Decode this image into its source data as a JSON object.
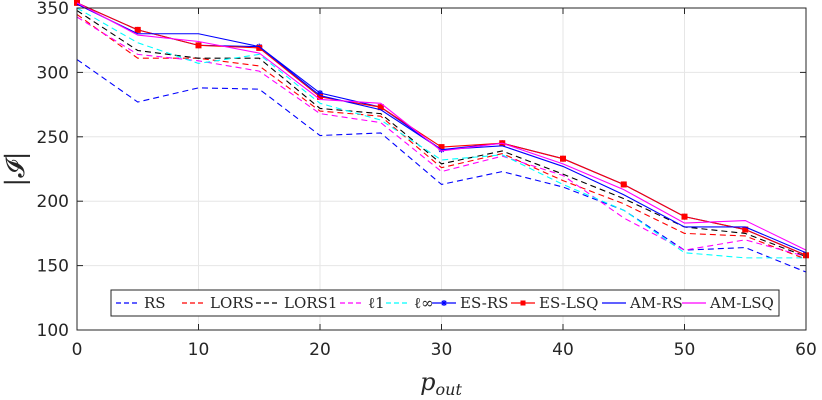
{
  "chart_data": {
    "type": "line",
    "title": "",
    "xlabel": "p_out",
    "xlabel_main": "p",
    "xlabel_sub": "out",
    "ylabel": "|𝓘|",
    "xlim": [
      0,
      60
    ],
    "ylim": [
      100,
      350
    ],
    "xticks": [
      0,
      10,
      20,
      30,
      40,
      50,
      60
    ],
    "yticks": [
      100,
      150,
      200,
      250,
      300,
      350
    ],
    "grid": true,
    "legend_location": "bottom",
    "x": [
      0,
      5,
      10,
      15,
      20,
      25,
      30,
      35,
      40,
      45,
      50,
      55,
      60
    ],
    "series": [
      {
        "name": "RS",
        "color": "#0000ff",
        "style": "dashed",
        "marker": "none",
        "values": [
          310,
          277,
          288,
          287,
          251,
          253,
          213,
          223,
          211,
          193,
          162,
          164,
          145
        ]
      },
      {
        "name": "LORS",
        "color": "#ff0000",
        "style": "dashed",
        "marker": "none",
        "values": [
          345,
          311,
          311,
          305,
          270,
          266,
          226,
          237,
          216,
          198,
          175,
          173,
          155
        ]
      },
      {
        "name": "LORS1",
        "color": "#000000",
        "style": "dashed",
        "marker": "none",
        "values": [
          348,
          317,
          311,
          311,
          272,
          268,
          229,
          239,
          221,
          202,
          180,
          175,
          157
        ]
      },
      {
        "name": "ℓ1",
        "color": "#ff00ff",
        "style": "dashed",
        "marker": "none",
        "values": [
          343,
          314,
          309,
          301,
          268,
          261,
          223,
          235,
          220,
          187,
          162,
          170,
          157
        ]
      },
      {
        "name": "ℓ∞",
        "color": "#00ffff",
        "style": "dashed",
        "marker": "none",
        "values": [
          350,
          323,
          307,
          314,
          276,
          263,
          232,
          236,
          213,
          193,
          160,
          156,
          156
        ]
      },
      {
        "name": "ES-RS",
        "color": "#0000ff",
        "style": "solid",
        "marker": "star",
        "values": [
          354,
          333,
          321,
          320,
          284,
          273,
          240,
          245,
          233,
          213,
          188,
          178,
          158
        ]
      },
      {
        "name": "ES-LSQ",
        "color": "#ff0000",
        "style": "solid",
        "marker": "square",
        "values": [
          354,
          333,
          321,
          319,
          281,
          273,
          242,
          245,
          233,
          213,
          188,
          178,
          158
        ]
      },
      {
        "name": "AM-RS",
        "color": "#0000ff",
        "style": "solid",
        "marker": "none",
        "values": [
          353,
          330,
          330,
          320,
          282,
          271,
          240,
          243,
          227,
          205,
          180,
          180,
          160
        ]
      },
      {
        "name": "AM-LSQ",
        "color": "#ff00ff",
        "style": "solid",
        "marker": "none",
        "values": [
          354,
          329,
          324,
          315,
          279,
          276,
          239,
          245,
          229,
          209,
          183,
          185,
          162
        ]
      }
    ]
  }
}
